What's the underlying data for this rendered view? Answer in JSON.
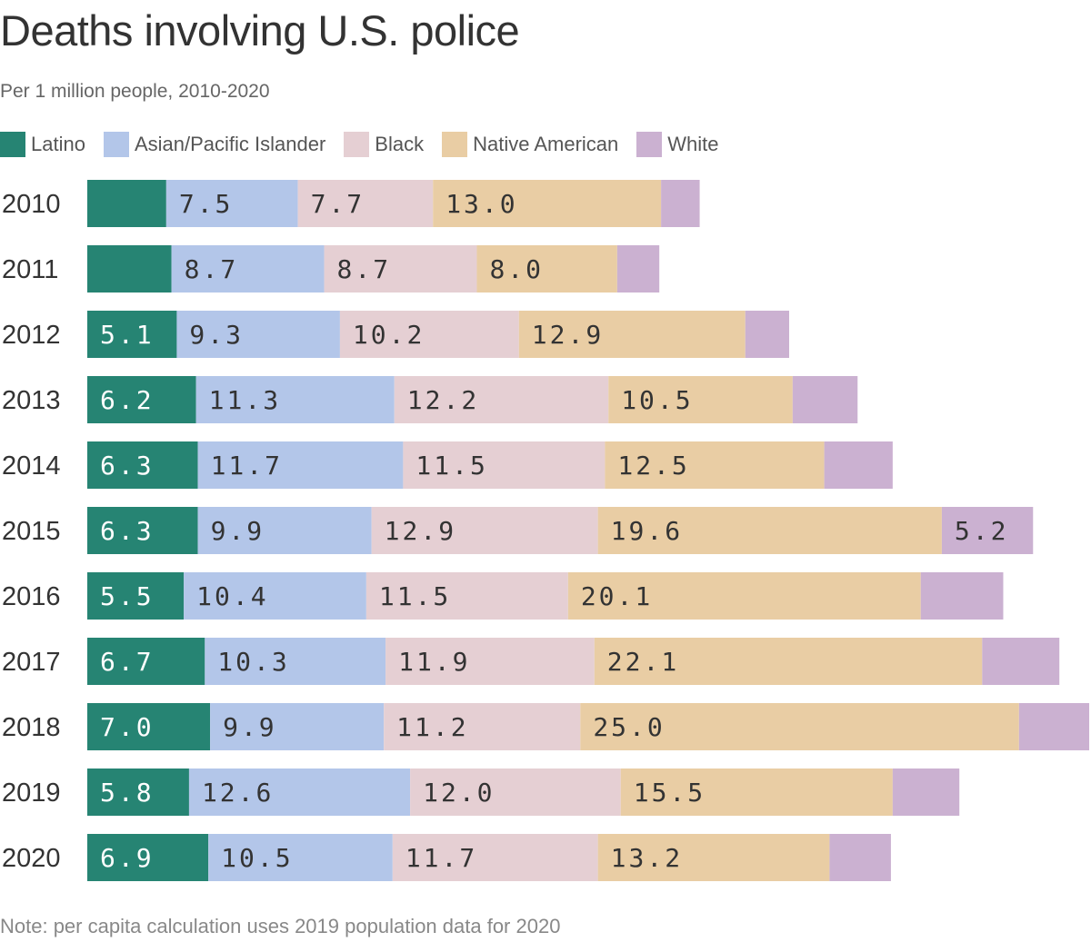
{
  "chart_data": {
    "type": "bar",
    "orientation": "horizontal",
    "stacked": true,
    "title": "Deaths involving U.S. police",
    "subtitle": "Per 1 million people, 2010-2020",
    "note": "Note: per capita calculation uses 2019 population data for 2020",
    "legend_position": "top-left",
    "grid": false,
    "categories": [
      "2010",
      "2011",
      "2012",
      "2013",
      "2014",
      "2015",
      "2016",
      "2017",
      "2018",
      "2019",
      "2020"
    ],
    "series": [
      {
        "name": "Latino",
        "color": "#268473",
        "label_color": "#ffffff",
        "values": [
          4.5,
          4.8,
          5.1,
          6.2,
          6.3,
          6.3,
          5.5,
          6.7,
          7.0,
          5.8,
          6.9
        ]
      },
      {
        "name": "Asian/Pacific Islander",
        "color": "#b3c6e9",
        "label_color": "#333333",
        "values": [
          7.5,
          8.7,
          9.3,
          11.3,
          11.7,
          9.9,
          10.4,
          10.3,
          9.9,
          12.6,
          10.5
        ]
      },
      {
        "name": "Black",
        "color": "#e5cfd3",
        "label_color": "#333333",
        "values": [
          7.7,
          8.7,
          10.2,
          12.2,
          11.5,
          12.9,
          11.5,
          11.9,
          11.2,
          12.0,
          11.7
        ]
      },
      {
        "name": "Native American",
        "color": "#e9cda4",
        "label_color": "#333333",
        "values": [
          13.0,
          8.0,
          12.9,
          10.5,
          12.5,
          19.6,
          20.1,
          22.1,
          25.0,
          15.5,
          13.2
        ]
      },
      {
        "name": "White",
        "color": "#cbb1d1",
        "label_color": "#333333",
        "values": [
          2.2,
          2.4,
          2.5,
          3.7,
          3.9,
          5.2,
          4.7,
          4.4,
          4.0,
          3.8,
          3.5
        ]
      }
    ]
  }
}
